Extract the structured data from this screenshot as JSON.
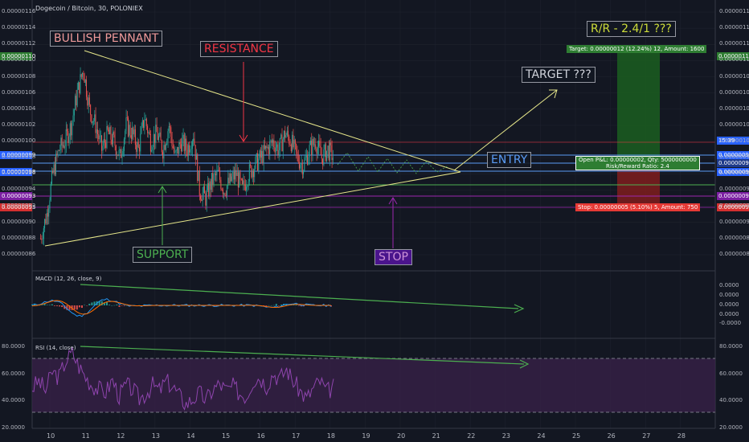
{
  "header": {
    "title": "Dogecoin / Bitcoin, 30, POLONIEX",
    "macd_title": "MACD (12, 26, close, 9)",
    "rsi_title": "RSI (14, close)"
  },
  "annotations": {
    "bullish": "BULLISH PENNANT",
    "resistance": "RESISTANCE",
    "target": "TARGET ???",
    "entry": "ENTRY",
    "support": "SUPPORT",
    "stop": "STOP",
    "rr": "R/R - 2.4/1 ???"
  },
  "position": {
    "target_label": "Target: 0.00000012 (12.24%) 12, Amount: 1600",
    "pnl_label": "Open P&L: 0.00000002, Qty: 5000000000",
    "rr_label": "Risk/Reward Ratio: 2.4",
    "stop_label": "Stop: 0.00000005 (5.10%) 5, Amount: 750"
  },
  "price_tags": {
    "target": "0.00000110",
    "last": "0.00000099",
    "entry": "0.00000098",
    "current": "0.00000098",
    "support": "0.00000093",
    "stop": "0.00000093",
    "clock": "15:39"
  },
  "colors": {
    "bg": "#131722",
    "up": "#26a69a",
    "down": "#ef5350",
    "pennant": "#e6e68a",
    "support": "#4caf50",
    "resistance": "#f23645",
    "stop": "#9c27b0",
    "entry": "#5b9cf6",
    "target_zone": "#1b5e20",
    "stop_zone": "#7f1d1d",
    "rsi_fill": "#3a2249"
  },
  "chart_data": [
    {
      "type": "candlestick",
      "title": "Dogecoin / Bitcoin, 30, POLONIEX",
      "x_labels": [
        "10",
        "11",
        "12",
        "13",
        "14",
        "15",
        "16",
        "17",
        "18",
        "19",
        "20",
        "21",
        "22",
        "23",
        "24",
        "25",
        "26",
        "27",
        "28"
      ],
      "y_ticks": [
        "0.00000116",
        "0.00000114",
        "0.00000112",
        "0.00000110",
        "0.00000108",
        "0.00000106",
        "0.00000104",
        "0.00000102",
        "0.00000100",
        "0.00000098",
        "0.00000096",
        "0.00000094",
        "0.00000092",
        "0.00000090",
        "0.00000088",
        "0.00000086"
      ],
      "ylim": [
        8.5e-07,
        1.17e-06
      ],
      "close_series": [
        8.8e-07,
        9.1e-07,
        9.6e-07,
        9.9e-07,
        1e-06,
        1.02e-06,
        1.06e-06,
        1.09e-06,
        1.04e-06,
        1.02e-06,
        9.9e-07,
        1.01e-06,
        1e-06,
        9.8e-07,
        1.02e-06,
        1.01e-06,
        9.9e-07,
        1.03e-06,
        1e-06,
        1.01e-06,
        9.9e-07,
        1.02e-06,
        9.8e-07,
        1e-06,
        9.9e-07,
        1.01e-06,
        9.4e-07,
        9.3e-07,
        9.5e-07,
        9.6e-07,
        9.4e-07,
        9.5e-07,
        9.6e-07,
        9.4e-07,
        9.6e-07,
        9.7e-07,
        9.8e-07,
        9.9e-07,
        1e-06,
        9.9e-07,
        1.01e-06,
        1e-06,
        9.8e-07,
        9.7e-07,
        9.9e-07,
        1e-06,
        9.8e-07,
        9.9e-07,
        9.8e-07
      ],
      "levels": {
        "target": 1.1e-06,
        "entry": 9.8e-07,
        "stop": 9.3e-07
      }
    },
    {
      "type": "line",
      "title": "MACD (12, 26, close, 9)",
      "y_ticks": [
        "0.0000",
        "0.0000",
        "0.0000",
        "0.0000",
        "-0.0000"
      ]
    },
    {
      "type": "line",
      "title": "RSI (14, close)",
      "y_ticks": [
        "80.0000",
        "60.0000",
        "40.0000",
        "20.0000"
      ],
      "ylim": [
        20,
        85
      ],
      "bands": [
        30,
        70
      ],
      "values": [
        50,
        55,
        48,
        62,
        58,
        70,
        76,
        66,
        58,
        52,
        49,
        47,
        56,
        44,
        52,
        49,
        42,
        46,
        52,
        48,
        55,
        51,
        44,
        38,
        42,
        46,
        41,
        49,
        53,
        48,
        51,
        46,
        44,
        56,
        58,
        52,
        61,
        57,
        64,
        55,
        48,
        42,
        50,
        55,
        47,
        51
      ]
    }
  ]
}
